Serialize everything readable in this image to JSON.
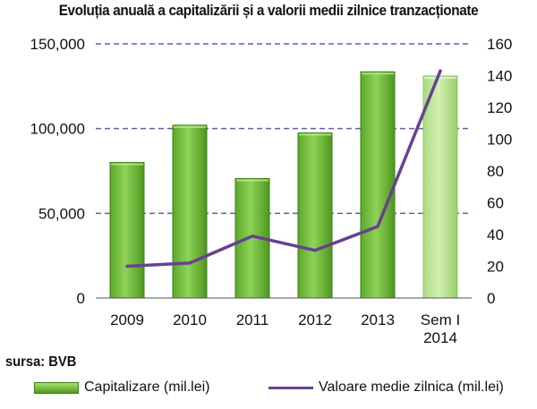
{
  "chart_data": {
    "type": "bar",
    "title": "Evoluția anuală a capitalizării și a valorii medii zilnice tranzacționate",
    "categories": [
      "2009",
      "2010",
      "2011",
      "2012",
      "2013",
      "Sem I\n2014"
    ],
    "series": [
      {
        "name": "Capitalizare (mil.lei)",
        "type": "bar",
        "axis": "left",
        "values": [
          80000,
          102000,
          70500,
          97500,
          133500,
          131000
        ]
      },
      {
        "name": "Valoare medie zilnica (mil.lei)",
        "type": "line",
        "axis": "right",
        "values": [
          20,
          22,
          39,
          30,
          45,
          143
        ]
      }
    ],
    "ylim": [
      0,
      150000
    ],
    "y_ticks": [
      "0",
      "50,000",
      "100,000",
      "150,000"
    ],
    "y2lim": [
      0,
      160
    ],
    "y2_ticks": [
      "0",
      "20",
      "40",
      "60",
      "80",
      "100",
      "120",
      "140",
      "160"
    ],
    "grid": "dashed horizontal at left major ticks",
    "legend_position": "bottom",
    "colors": {
      "bar_top": "#a6e06f",
      "bar_bottom": "#4f9a1f",
      "bar_border": "#3e7f16",
      "bar_highlight_top": "#d4f0b4",
      "bar_highlight_bottom": "#97cf68",
      "line": "#66428f",
      "grid": "#6a5ba8"
    }
  },
  "source_note": "sursa: BVB"
}
